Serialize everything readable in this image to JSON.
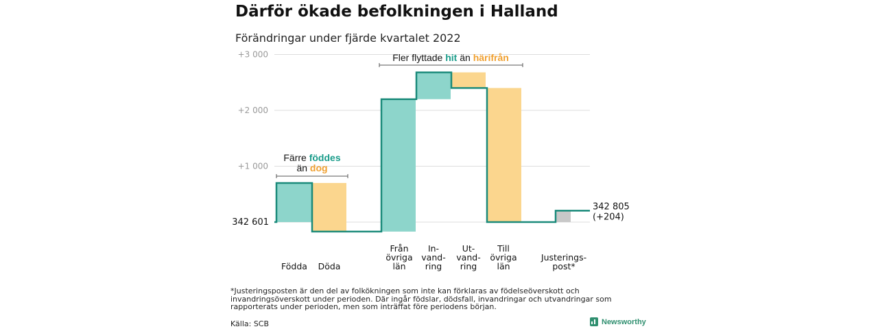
{
  "title": "Därför ökade befolkningen i Halland",
  "subtitle": "Förändringar under fjärde kvartalet 2022",
  "chart_data": {
    "type": "waterfall",
    "start_value": 342601,
    "end_value": 342805,
    "start_label": "342 601",
    "end_label": "342 805",
    "end_change_label": "(+204)",
    "y_ticks": [
      {
        "value": 1000,
        "label": "+1 000"
      },
      {
        "value": 2000,
        "label": "+2 000"
      },
      {
        "value": 3000,
        "label": "+3 000"
      }
    ],
    "ylim": [
      -300,
      3200
    ],
    "steps": [
      {
        "label": "Födda",
        "value": 700,
        "direction": "in"
      },
      {
        "label": "Döda",
        "value": -870,
        "direction": "out"
      },
      {
        "label": "Från\növriga\nlän",
        "value": 2370,
        "direction": "in"
      },
      {
        "label": "In-\nvand-\nring",
        "value": 480,
        "direction": "in"
      },
      {
        "label": "Ut-\nvand-\nring",
        "value": -280,
        "direction": "out"
      },
      {
        "label": "Till\növriga\nlän",
        "value": -2400,
        "direction": "out"
      },
      {
        "label": "Justerings-\npost*",
        "value": 204,
        "direction": "adjust"
      }
    ],
    "annotations": [
      {
        "lines": [
          [
            "Färre ",
            "födda",
            "föddes",
            ""
          ],
          [
            "än ",
            "döda",
            "dog",
            ""
          ]
        ],
        "spans_steps": [
          0,
          1
        ]
      },
      {
        "lines": [
          [
            "Fler flyttade ",
            "in",
            "hit",
            " än "
          ],
          [
            "",
            "out",
            "härifrån",
            ""
          ]
        ],
        "spans_steps": [
          2,
          5
        ],
        "inline": true
      }
    ],
    "colors": {
      "in": "#8dd5cb",
      "out": "#fbd68e",
      "adjust": "#c8c8c8",
      "line": "#1a8a7a",
      "in_text": "#1a9c8a",
      "out_text": "#f0a030",
      "grid": "#dddddd",
      "tick": "#999999"
    }
  },
  "footnote": "*Justeringsposten är den del av folkökningen som inte kan förklaras av födelseöverskott och invandringsöverskott under perioden. Där ingår födslar, dödsfall, invandringar och utvandringar som rapporterats under perioden, men som inträffat före periodens början.",
  "source": "Källa: SCB",
  "brand": "Newsworthy"
}
